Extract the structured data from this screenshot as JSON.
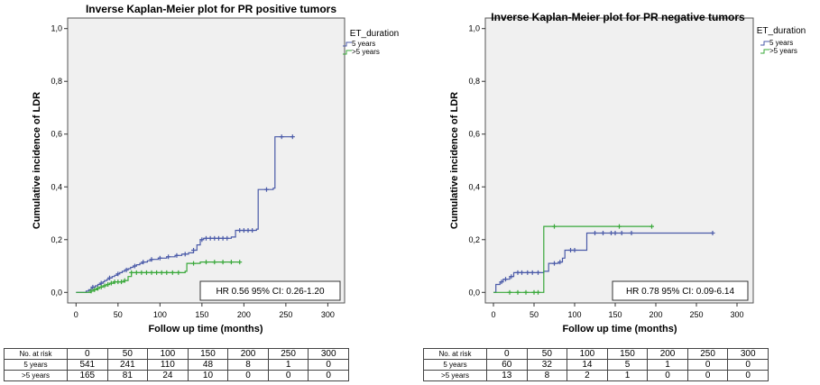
{
  "chart_data": [
    {
      "type": "line",
      "title": "Inverse Kaplan-Meier plot for PR positive tumors",
      "xlabel": "Follow up time (months)",
      "ylabel": "Cumulative incidence of LDR",
      "xlim": [
        -10,
        320
      ],
      "ylim": [
        -0.04,
        1.04
      ],
      "xticks": [
        "0",
        "50",
        "100",
        "150",
        "200",
        "250",
        "300"
      ],
      "yticks": [
        "0,0",
        "0,2",
        "0,4",
        "0,6",
        "0,8",
        "1,0"
      ],
      "grid": false,
      "legend_title": "ET_duration",
      "legend_position": "top-right",
      "annotation": "HR 0.56 95% CI: 0.26-1.20",
      "series": [
        {
          "name": "5 years",
          "color": "#4a5aa8",
          "steps": [
            [
              0,
              0
            ],
            [
              12,
              0.005
            ],
            [
              15,
              0.01
            ],
            [
              18,
              0.015
            ],
            [
              20,
              0.02
            ],
            [
              23,
              0.025
            ],
            [
              26,
              0.03
            ],
            [
              29,
              0.035
            ],
            [
              32,
              0.04
            ],
            [
              34,
              0.045
            ],
            [
              37,
              0.05
            ],
            [
              40,
              0.055
            ],
            [
              43,
              0.06
            ],
            [
              46,
              0.065
            ],
            [
              49,
              0.07
            ],
            [
              52,
              0.075
            ],
            [
              55,
              0.08
            ],
            [
              58,
              0.085
            ],
            [
              62,
              0.09
            ],
            [
              65,
              0.095
            ],
            [
              68,
              0.1
            ],
            [
              72,
              0.105
            ],
            [
              76,
              0.11
            ],
            [
              80,
              0.115
            ],
            [
              85,
              0.12
            ],
            [
              90,
              0.125
            ],
            [
              98,
              0.13
            ],
            [
              108,
              0.135
            ],
            [
              118,
              0.14
            ],
            [
              126,
              0.145
            ],
            [
              134,
              0.15
            ],
            [
              140,
              0.16
            ],
            [
              144,
              0.18
            ],
            [
              148,
              0.2
            ],
            [
              152,
              0.205
            ],
            [
              185,
              0.21
            ],
            [
              190,
              0.235
            ],
            [
              215,
              0.24
            ],
            [
              217,
              0.39
            ],
            [
              235,
              0.395
            ],
            [
              237,
              0.59
            ],
            [
              258,
              0.59
            ]
          ],
          "censor": [
            20,
            30,
            40,
            50,
            60,
            70,
            80,
            90,
            100,
            110,
            120,
            130,
            140,
            150,
            155,
            160,
            165,
            170,
            175,
            180,
            195,
            200,
            205,
            210,
            227,
            245,
            258
          ]
        },
        {
          "name": ">5 years",
          "color": "#39a83a",
          "steps": [
            [
              0,
              0
            ],
            [
              18,
              0.005
            ],
            [
              22,
              0.01
            ],
            [
              25,
              0.015
            ],
            [
              28,
              0.02
            ],
            [
              32,
              0.025
            ],
            [
              36,
              0.03
            ],
            [
              40,
              0.035
            ],
            [
              45,
              0.04
            ],
            [
              58,
              0.045
            ],
            [
              62,
              0.06
            ],
            [
              66,
              0.075
            ],
            [
              130,
              0.08
            ],
            [
              132,
              0.11
            ],
            [
              148,
              0.115
            ],
            [
              195,
              0.115
            ]
          ],
          "censor": [
            18,
            22,
            26,
            30,
            34,
            38,
            42,
            46,
            50,
            54,
            58,
            66,
            72,
            78,
            84,
            90,
            96,
            102,
            108,
            115,
            122,
            140,
            155,
            165,
            175,
            185,
            195
          ]
        }
      ]
    },
    {
      "type": "line",
      "title": "Inverse Kaplan-Meier plot for PR negative tumors",
      "xlabel": "Follow up time (months)",
      "ylabel": "Cumulative incidence of LDR",
      "xlim": [
        -10,
        320
      ],
      "ylim": [
        -0.04,
        1.04
      ],
      "xticks": [
        "0",
        "50",
        "100",
        "150",
        "200",
        "250",
        "300"
      ],
      "yticks": [
        "0,0",
        "0,2",
        "0,4",
        "0,6",
        "0,8",
        "1,0"
      ],
      "grid": false,
      "legend_title": "ET_duration",
      "legend_position": "top-right",
      "annotation": "HR 0.78 95% CI: 0.09-6.14",
      "series": [
        {
          "name": "5 years",
          "color": "#4a5aa8",
          "steps": [
            [
              0,
              0
            ],
            [
              3,
              0.03
            ],
            [
              8,
              0.04
            ],
            [
              12,
              0.05
            ],
            [
              20,
              0.06
            ],
            [
              25,
              0.075
            ],
            [
              62,
              0.08
            ],
            [
              68,
              0.11
            ],
            [
              80,
              0.115
            ],
            [
              85,
              0.13
            ],
            [
              88,
              0.16
            ],
            [
              105,
              0.16
            ],
            [
              115,
              0.225
            ],
            [
              270,
              0.225
            ]
          ],
          "censor": [
            10,
            15,
            22,
            30,
            35,
            42,
            48,
            55,
            75,
            82,
            95,
            100,
            125,
            135,
            145,
            150,
            158,
            170,
            270
          ]
        },
        {
          "name": ">5 years",
          "color": "#39a83a",
          "steps": [
            [
              0,
              0
            ],
            [
              62,
              0.25
            ],
            [
              195,
              0.25
            ]
          ],
          "censor": [
            20,
            30,
            40,
            50,
            55,
            75,
            155,
            195
          ]
        }
      ]
    }
  ],
  "risk_tables": [
    {
      "header": [
        "No. at risk",
        "0",
        "50",
        "100",
        "150",
        "200",
        "250",
        "300"
      ],
      "rows": [
        [
          "5 years",
          "541",
          "241",
          "110",
          "48",
          "8",
          "1",
          "0"
        ],
        [
          ">5 years",
          "165",
          "81",
          "24",
          "10",
          "0",
          "0",
          "0"
        ]
      ]
    },
    {
      "header": [
        "No. at risk",
        "0",
        "50",
        "100",
        "150",
        "200",
        "250",
        "300"
      ],
      "rows": [
        [
          "5 years",
          "60",
          "32",
          "14",
          "5",
          "1",
          "0",
          "0"
        ],
        [
          ">5 years",
          "13",
          "8",
          "2",
          "1",
          "0",
          "0",
          "0"
        ]
      ]
    }
  ]
}
